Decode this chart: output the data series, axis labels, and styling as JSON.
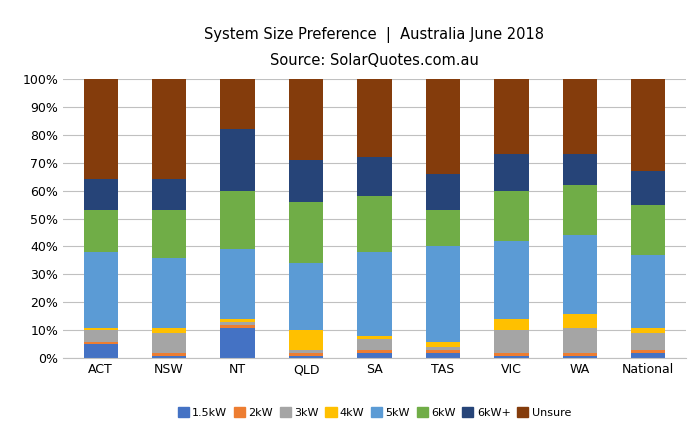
{
  "title_line1": "System Size Preference  |  Australia June 2018",
  "title_line2": "Source: SolarQuotes.com.au",
  "categories": [
    "ACT",
    "NSW",
    "NT",
    "QLD",
    "SA",
    "TAS",
    "VIC",
    "WA",
    "National"
  ],
  "series": {
    "1.5kW": [
      5,
      1,
      11,
      1,
      2,
      2,
      1,
      1,
      2
    ],
    "2kW": [
      1,
      1,
      1,
      1,
      1,
      1,
      1,
      1,
      1
    ],
    "3kW": [
      4,
      7,
      1,
      1,
      4,
      1,
      8,
      9,
      6
    ],
    "4kW": [
      1,
      2,
      1,
      7,
      1,
      2,
      4,
      5,
      2
    ],
    "5kW": [
      27,
      25,
      25,
      24,
      30,
      34,
      28,
      28,
      26
    ],
    "6kW": [
      15,
      17,
      21,
      22,
      20,
      13,
      18,
      18,
      18
    ],
    "6kW+": [
      11,
      11,
      22,
      15,
      14,
      13,
      13,
      11,
      12
    ],
    "Unsure": [
      36,
      36,
      18,
      29,
      28,
      34,
      27,
      27,
      33
    ]
  },
  "colors": {
    "1.5kW": "#4472C4",
    "2kW": "#ED7D31",
    "3kW": "#A5A5A5",
    "4kW": "#FFC000",
    "5kW": "#5B9BD5",
    "6kW": "#70AD47",
    "6kW+": "#264478",
    "Unsure": "#843C0C"
  },
  "ylim": [
    0,
    100
  ],
  "ylabel_ticks": [
    "0%",
    "10%",
    "20%",
    "30%",
    "40%",
    "50%",
    "60%",
    "70%",
    "80%",
    "90%",
    "100%"
  ],
  "background_color": "#FFFFFF",
  "grid_color": "#C0C0C0",
  "bar_width": 0.5
}
